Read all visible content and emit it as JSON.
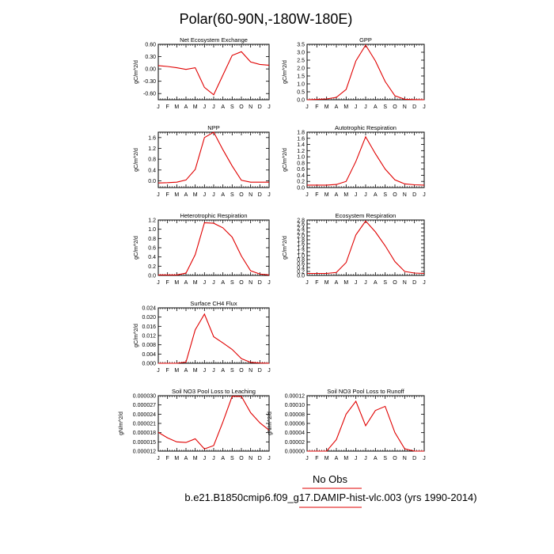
{
  "page": {
    "title": "Polar(60-90N,-180W-180E)",
    "legend_label": "No Obs",
    "case_label": "b.e21.B1850cmip6.f09_g17.DAMIP-hist-vlc.003 (yrs 1990-2014)",
    "line_color": "#e00000",
    "legend_line_color": "#e00000"
  },
  "chart_data": [
    {
      "type": "line",
      "title": "Net Ecosystem Exchange",
      "ylabel": "gC/m^2/d",
      "x": [
        "J",
        "F",
        "M",
        "A",
        "M",
        "J",
        "J",
        "A",
        "S",
        "O",
        "N",
        "D",
        "J"
      ],
      "ylim": [
        -0.75,
        0.6
      ],
      "yticks": [
        "0.60",
        "0.30",
        "0.00",
        "-0.30",
        "-0.60"
      ],
      "ytick_values": [
        0.6,
        0.3,
        0.0,
        -0.3,
        -0.6
      ],
      "series": [
        {
          "values": [
            0.08,
            0.06,
            0.03,
            -0.01,
            0.03,
            -0.45,
            -0.63,
            -0.15,
            0.33,
            0.42,
            0.17,
            0.11,
            0.09
          ]
        }
      ]
    },
    {
      "type": "line",
      "title": "GPP",
      "ylabel": "gC/m^2/d",
      "x": [
        "J",
        "F",
        "M",
        "A",
        "M",
        "J",
        "J",
        "A",
        "S",
        "O",
        "N",
        "D",
        "J"
      ],
      "ylim": [
        0,
        3.5
      ],
      "yticks": [
        "3.5",
        "3.0",
        "2.5",
        "2.0",
        "1.5",
        "1.0",
        "0.5",
        "0.0"
      ],
      "ytick_values": [
        3.5,
        3.0,
        2.5,
        2.0,
        1.5,
        1.0,
        0.5,
        0.0
      ],
      "series": [
        {
          "values": [
            0.0,
            0.02,
            0.05,
            0.15,
            0.65,
            2.45,
            3.45,
            2.45,
            1.15,
            0.25,
            0.03,
            0.01,
            0.0
          ]
        }
      ]
    },
    {
      "type": "line",
      "title": "NPP",
      "ylabel": "gC/m^2/d",
      "x": [
        "J",
        "F",
        "M",
        "A",
        "M",
        "J",
        "J",
        "A",
        "S",
        "O",
        "N",
        "D",
        "J"
      ],
      "ylim": [
        -0.25,
        1.8
      ],
      "yticks": [
        "1.6",
        "1.2",
        "0.8",
        "0.4",
        "0.0"
      ],
      "ytick_values": [
        1.6,
        1.2,
        0.8,
        0.4,
        0.0
      ],
      "series": [
        {
          "values": [
            -0.08,
            -0.07,
            -0.05,
            0.03,
            0.42,
            1.6,
            1.8,
            1.15,
            0.55,
            0.02,
            -0.05,
            -0.05,
            -0.05
          ]
        }
      ]
    },
    {
      "type": "line",
      "title": "Autotrophic Respiration",
      "ylabel": "gC/m^2/d",
      "x": [
        "J",
        "F",
        "M",
        "A",
        "M",
        "J",
        "J",
        "A",
        "S",
        "O",
        "N",
        "D",
        "J"
      ],
      "ylim": [
        0,
        1.8
      ],
      "yticks": [
        "1.8",
        "1.6",
        "1.4",
        "1.2",
        "1.0",
        "0.8",
        "0.6",
        "0.4",
        "0.2",
        "0.0"
      ],
      "ytick_values": [
        1.8,
        1.6,
        1.4,
        1.2,
        1.0,
        0.8,
        0.6,
        0.4,
        0.2,
        0.0
      ],
      "series": [
        {
          "values": [
            0.08,
            0.08,
            0.08,
            0.1,
            0.2,
            0.85,
            1.65,
            1.1,
            0.6,
            0.25,
            0.12,
            0.09,
            0.08
          ]
        }
      ]
    },
    {
      "type": "line",
      "title": "Heterotrophic Respiration",
      "ylabel": "gC/m^2/d",
      "x": [
        "J",
        "F",
        "M",
        "A",
        "M",
        "J",
        "J",
        "A",
        "S",
        "O",
        "N",
        "D",
        "J"
      ],
      "ylim": [
        0,
        1.2
      ],
      "yticks": [
        "1.2",
        "1.0",
        "0.8",
        "0.6",
        "0.4",
        "0.2",
        "0.0"
      ],
      "ytick_values": [
        1.2,
        1.0,
        0.8,
        0.6,
        0.4,
        0.2,
        0.0
      ],
      "series": [
        {
          "values": [
            0.01,
            0.01,
            0.01,
            0.05,
            0.45,
            1.14,
            1.13,
            1.03,
            0.83,
            0.42,
            0.1,
            0.03,
            0.01
          ]
        }
      ]
    },
    {
      "type": "line",
      "title": "Ecosystem Respiration",
      "ylabel": "gC/m^2/d",
      "x": [
        "J",
        "F",
        "M",
        "A",
        "M",
        "J",
        "J",
        "A",
        "S",
        "O",
        "N",
        "D",
        "J"
      ],
      "ylim": [
        0,
        2.8
      ],
      "yticks": [
        "2.8",
        "2.6",
        "2.4",
        "2.2",
        "2.0",
        "1.8",
        "1.6",
        "1.4",
        "1.2",
        "1.0",
        "0.8",
        "0.6",
        "0.4",
        "0.2",
        "0.0"
      ],
      "ytick_values": [
        2.8,
        2.6,
        2.4,
        2.2,
        2.0,
        1.8,
        1.6,
        1.4,
        1.2,
        1.0,
        0.8,
        0.6,
        0.4,
        0.2,
        0.0
      ],
      "series": [
        {
          "values": [
            0.1,
            0.1,
            0.1,
            0.15,
            0.65,
            2.05,
            2.75,
            2.2,
            1.5,
            0.7,
            0.2,
            0.12,
            0.1
          ]
        }
      ]
    },
    {
      "type": "line",
      "title": "Surface CH4 Flux",
      "ylabel": "gC/m^2/d",
      "x": [
        "J",
        "F",
        "M",
        "A",
        "M",
        "J",
        "J",
        "A",
        "S",
        "O",
        "N",
        "D",
        "J"
      ],
      "ylim": [
        0,
        0.024
      ],
      "yticks": [
        "0.024",
        "0.020",
        "0.016",
        "0.012",
        "0.008",
        "0.004",
        "0.000"
      ],
      "ytick_values": [
        0.024,
        0.02,
        0.016,
        0.012,
        0.008,
        0.004,
        0.0
      ],
      "series": [
        {
          "values": [
            0.0,
            0.0,
            0.0,
            0.0005,
            0.0145,
            0.0213,
            0.0115,
            0.0088,
            0.006,
            0.002,
            0.0004,
            0.0001,
            0.0
          ]
        }
      ]
    },
    {
      "type": "line",
      "title": "Soil NO3 Pool Loss to Leaching",
      "ylabel": "gN/m^2/d",
      "x": [
        "J",
        "F",
        "M",
        "A",
        "M",
        "J",
        "J",
        "A",
        "S",
        "O",
        "N",
        "D",
        "J"
      ],
      "ylim": [
        1.2e-05,
        3e-05
      ],
      "yticks": [
        "0.000030",
        "0.000027",
        "0.000024",
        "0.000021",
        "0.000018",
        "0.000015",
        "0.000012"
      ],
      "ytick_values": [
        3e-05,
        2.7e-05,
        2.4e-05,
        2.1e-05,
        1.8e-05,
        1.5e-05,
        1.2e-05
      ],
      "series": [
        {
          "values": [
            1.81e-05,
            1.63e-05,
            1.5e-05,
            1.48e-05,
            1.6e-05,
            1.27e-05,
            1.38e-05,
            2.15e-05,
            2.98e-05,
            2.98e-05,
            2.45e-05,
            2.12e-05,
            1.88e-05
          ]
        }
      ]
    },
    {
      "type": "line",
      "title": "Soil NO3 Pool Loss to Runoff",
      "ylabel": "gN/m^2/d",
      "x": [
        "J",
        "F",
        "M",
        "A",
        "M",
        "J",
        "J",
        "A",
        "S",
        "O",
        "N",
        "D",
        "J"
      ],
      "ylim": [
        0,
        0.00012
      ],
      "yticks": [
        "0.00012",
        "0.00010",
        "0.00008",
        "0.00006",
        "0.00004",
        "0.00002",
        "0.00000"
      ],
      "ytick_values": [
        0.00012,
        0.0001,
        8e-05,
        6e-05,
        4e-05,
        2e-05,
        0.0
      ],
      "series": [
        {
          "values": [
            0.0,
            0.0,
            0.0,
            2.5e-05,
            8e-05,
            0.000108,
            5.5e-05,
            8.8e-05,
            9.7e-05,
            4e-05,
            5e-06,
            0.0,
            0.0
          ]
        }
      ]
    }
  ]
}
